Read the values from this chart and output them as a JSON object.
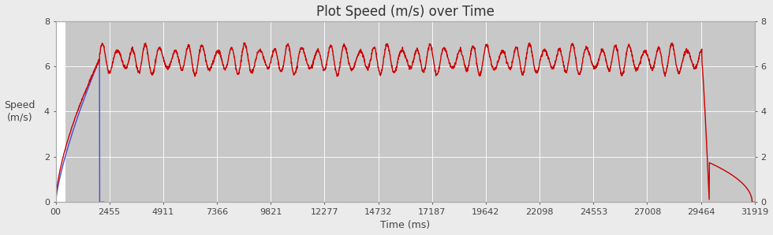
{
  "title": "Plot Speed (m/s) over Time",
  "xlabel": "Time (ms)",
  "ylabel": "Speed\n(m/s)",
  "xlim": [
    0,
    31919
  ],
  "ylim": [
    0,
    8
  ],
  "xticks": [
    0,
    2455,
    4911,
    7366,
    9821,
    12277,
    14732,
    17187,
    19642,
    22098,
    24553,
    27008,
    29464,
    31919
  ],
  "xticklabels": [
    "00",
    "2455",
    "4911",
    "7366",
    "9821",
    "12277",
    "14732",
    "17187",
    "19642",
    "22098",
    "24553",
    "27008",
    "29464",
    "31919"
  ],
  "yticks": [
    0,
    2,
    4,
    6,
    8
  ],
  "background_color": "#c8c8c8",
  "outer_background": "#ebebeb",
  "line_color_red": "#cc0000",
  "line_color_blue": "#5555cc",
  "title_fontsize": 12,
  "label_fontsize": 9,
  "tick_fontsize": 8,
  "total_time_ms": 31919,
  "accel_end_ms": 2000,
  "cruise_end_ms": 29500,
  "cruise_speed_base": 6.3,
  "oscillation_amp": 0.5,
  "oscillation_period_ms": 650,
  "decel_end_ms": 31800,
  "white_region_end_ms": 430
}
